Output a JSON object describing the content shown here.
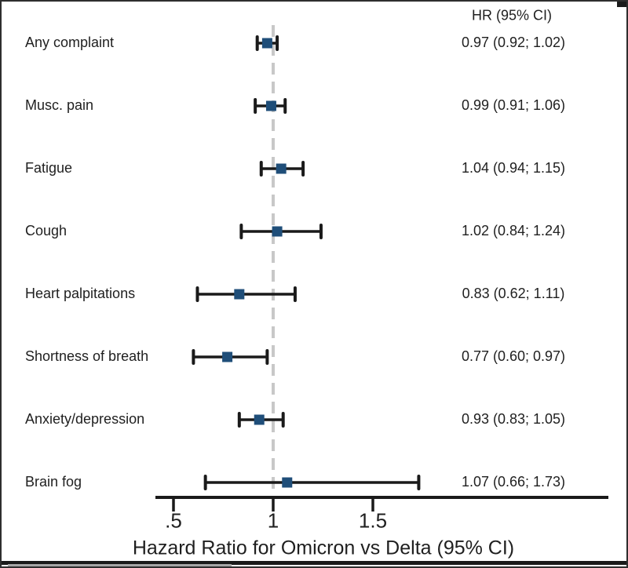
{
  "columns": {
    "hr_header": "HR (95% CI)"
  },
  "chart_data": {
    "type": "forest",
    "title": "",
    "xlabel": "Hazard Ratio for Omicron vs Delta  (95% CI)",
    "ylabel": "",
    "xlim": [
      0.4,
      2.68
    ],
    "reference_line": 1,
    "grid": false,
    "legend": "none",
    "xticks": [
      {
        "value": 0.5,
        "label": ".5"
      },
      {
        "value": 1.0,
        "label": "1"
      },
      {
        "value": 1.5,
        "label": "1.5"
      }
    ],
    "rows": [
      {
        "label": "Any complaint",
        "hr": 0.97,
        "lo": 0.92,
        "hi": 1.02,
        "text": "0.97 (0.92; 1.02)"
      },
      {
        "label": "Musc. pain",
        "hr": 0.99,
        "lo": 0.91,
        "hi": 1.06,
        "text": "0.99 (0.91; 1.06)"
      },
      {
        "label": "Fatigue",
        "hr": 1.04,
        "lo": 0.94,
        "hi": 1.15,
        "text": "1.04 (0.94; 1.15)"
      },
      {
        "label": "Cough",
        "hr": 1.02,
        "lo": 0.84,
        "hi": 1.24,
        "text": "1.02 (0.84; 1.24)"
      },
      {
        "label": "Heart palpitations",
        "hr": 0.83,
        "lo": 0.62,
        "hi": 1.11,
        "text": "0.83 (0.62; 1.11)"
      },
      {
        "label": "Shortness of breath",
        "hr": 0.77,
        "lo": 0.6,
        "hi": 0.97,
        "text": "0.77 (0.60; 0.97)"
      },
      {
        "label": "Anxiety/depression",
        "hr": 0.93,
        "lo": 0.83,
        "hi": 1.05,
        "text": "0.93 (0.83; 1.05)"
      },
      {
        "label": "Brain fog",
        "hr": 1.07,
        "lo": 0.66,
        "hi": 1.73,
        "text": "1.07 (0.66; 1.73)"
      }
    ],
    "colors": {
      "marker": "#1F4E79",
      "line": "#1a1a1a",
      "reference_dashed": "#c8c8c8",
      "text": "#1f1f1f",
      "background": "#ffffff"
    }
  }
}
